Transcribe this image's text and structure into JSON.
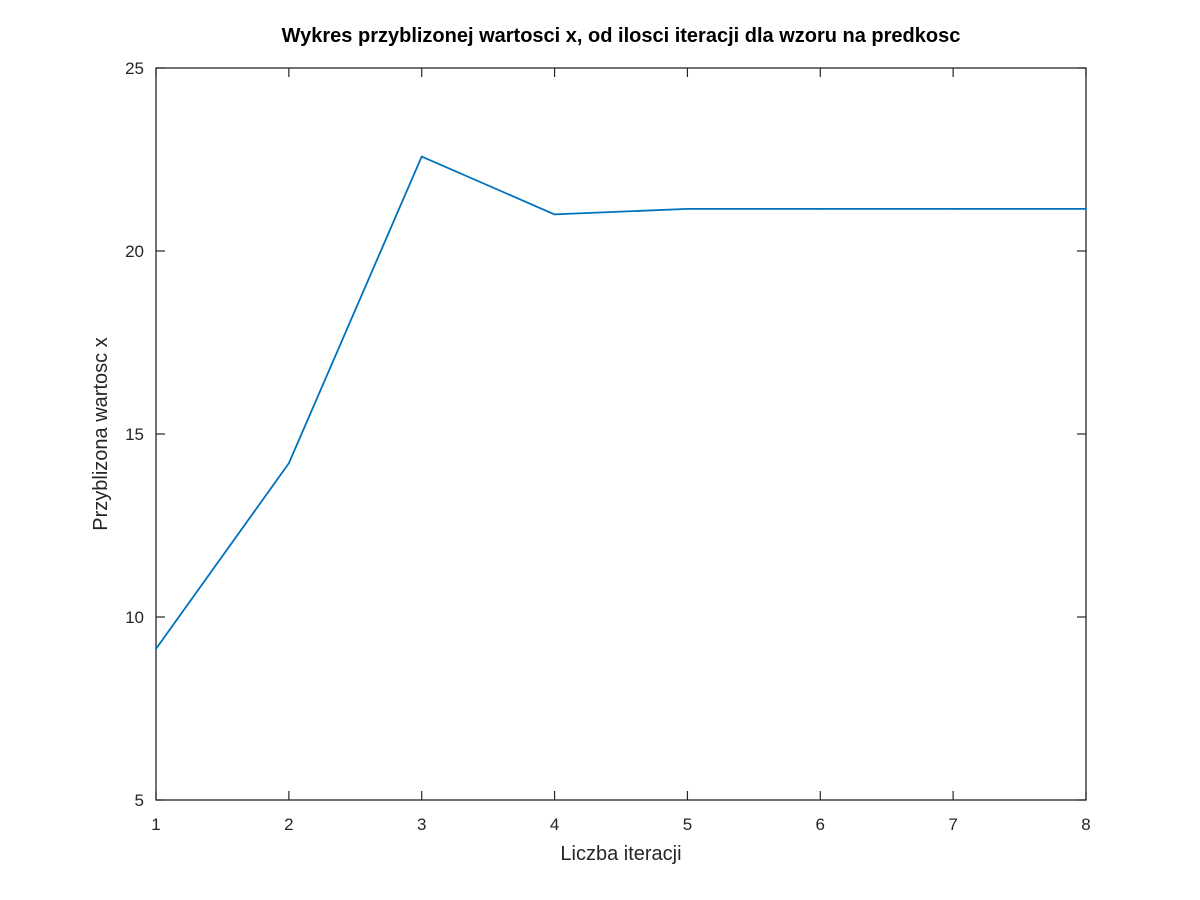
{
  "chart_data": {
    "type": "line",
    "title": "Wykres przyblizonej wartosci x, od ilosci iteracji dla wzoru na predkosc",
    "xlabel": "Liczba iteracji",
    "ylabel": "Przyblizona wartosc x",
    "xlim": [
      1,
      8
    ],
    "ylim": [
      5,
      25
    ],
    "x_ticks": [
      1,
      2,
      3,
      4,
      5,
      6,
      7,
      8
    ],
    "y_ticks": [
      5,
      10,
      15,
      20,
      25
    ],
    "grid": false,
    "line_color": "#0072bd",
    "series": [
      {
        "x": [
          1,
          2,
          3,
          4,
          5,
          6,
          7,
          8
        ],
        "values": [
          9.13,
          14.2,
          22.58,
          21.0,
          21.15,
          21.15,
          21.15,
          21.15
        ]
      }
    ]
  }
}
